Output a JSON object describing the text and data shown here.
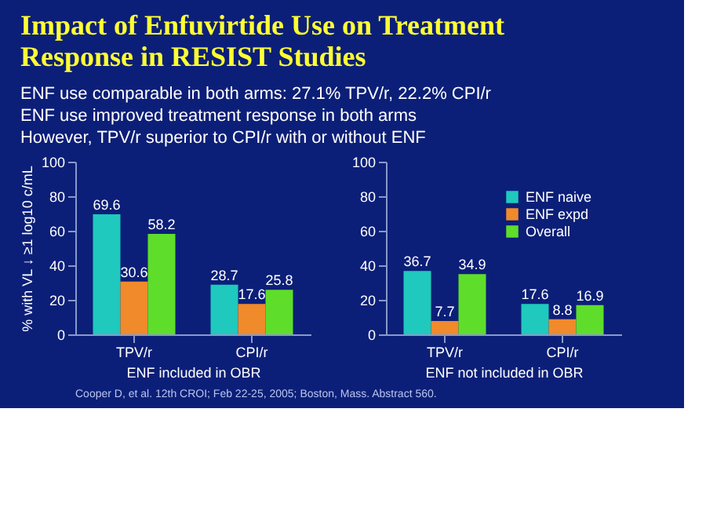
{
  "chart_data": [
    {
      "type": "bar",
      "title": "Impact of Enfuvirtide Use on Treatment Response in RESIST Studies",
      "subtitle": [
        "ENF use comparable in both arms: 27.1% TPV/r, 22.2% CPI/r",
        "ENF use improved treatment response in both arms",
        "However, TPV/r superior to CPI/r with or without ENF"
      ],
      "xlabel": "ENF included in OBR",
      "ylabel": "% with VL ↓ ≥1 log10 c/mL",
      "categories": [
        "TPV/r",
        "CPI/r"
      ],
      "series": [
        {
          "color": "#1fc9bd",
          "values": [
            69.6,
            28.7
          ]
        },
        {
          "color": "#f08a2a",
          "values": [
            30.6,
            17.6
          ]
        },
        {
          "color": "#5ede2a",
          "values": [
            58.2,
            25.8
          ]
        }
      ],
      "ylim": [
        0,
        100
      ],
      "yticks": [
        0,
        20,
        40,
        60,
        80,
        100
      ],
      "data_labels": true,
      "grid": false
    },
    {
      "type": "bar",
      "xlabel": "ENF not included in OBR",
      "categories": [
        "TPV/r",
        "CPI/r"
      ],
      "series": [
        {
          "name": "ENF naive",
          "color": "#1fc9bd",
          "values": [
            36.7,
            17.6
          ]
        },
        {
          "name": "ENF expd",
          "color": "#f08a2a",
          "values": [
            7.7,
            8.8
          ]
        },
        {
          "name": "Overall",
          "color": "#5ede2a",
          "values": [
            34.9,
            16.9
          ]
        }
      ],
      "ylim": [
        0,
        100
      ],
      "yticks": [
        0,
        20,
        40,
        60,
        80,
        100
      ],
      "data_labels": true,
      "legend": "top right",
      "grid": false,
      "annotations": [
        "Cooper D, et al. 12th CROI; Feb 22-25, 2005; Boston, Mass. Abstract 560."
      ]
    }
  ]
}
